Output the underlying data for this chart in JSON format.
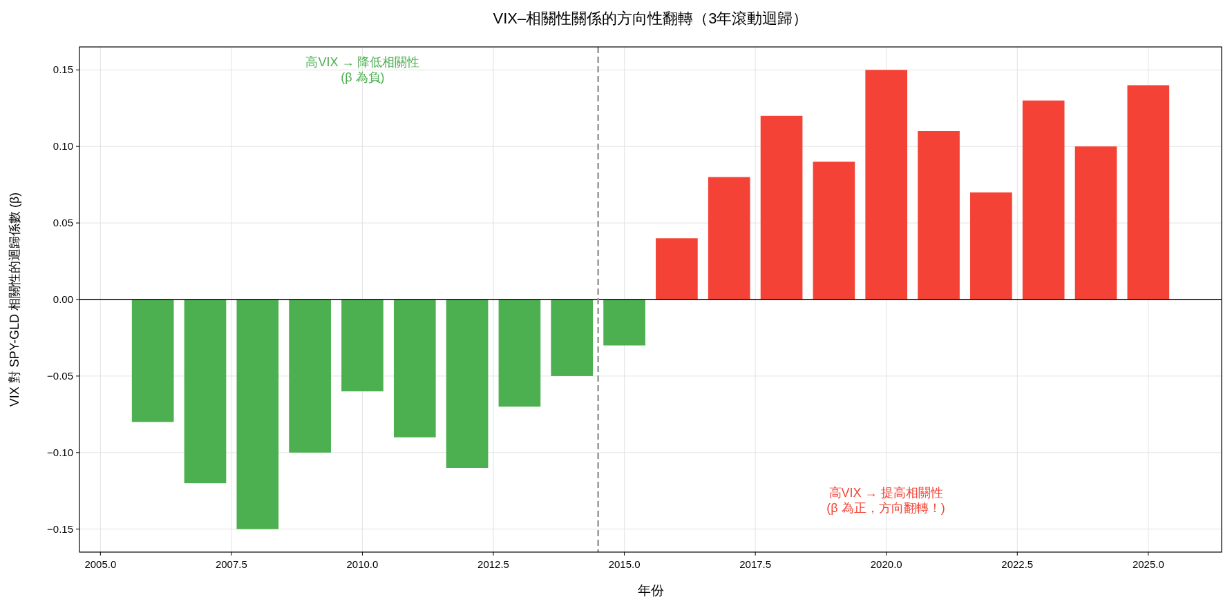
{
  "chart_data": {
    "type": "bar",
    "title": "VIX–相關性關係的方向性翻轉（3年滾動迴歸）",
    "xlabel": "年份",
    "ylabel": "VIX 對 SPY-GLD 相關性的迴歸係數 (β)",
    "x": [
      2006,
      2007,
      2008,
      2009,
      2010,
      2011,
      2012,
      2013,
      2014,
      2015,
      2016,
      2017,
      2018,
      2019,
      2020,
      2021,
      2022,
      2023,
      2024,
      2025
    ],
    "values": [
      -0.08,
      -0.12,
      -0.15,
      -0.1,
      -0.06,
      -0.09,
      -0.11,
      -0.07,
      -0.05,
      -0.03,
      0.04,
      0.08,
      0.12,
      0.09,
      0.15,
      0.11,
      0.07,
      0.13,
      0.1,
      0.14
    ],
    "colors": [
      "#4caf50",
      "#4caf50",
      "#4caf50",
      "#4caf50",
      "#4caf50",
      "#4caf50",
      "#4caf50",
      "#4caf50",
      "#4caf50",
      "#4caf50",
      "#f44336",
      "#f44336",
      "#f44336",
      "#f44336",
      "#f44336",
      "#f44336",
      "#f44336",
      "#f44336",
      "#f44336",
      "#f44336"
    ],
    "xlim": [
      2004.6,
      2026.4
    ],
    "ylim": [
      -0.165,
      0.165
    ],
    "xticks": [
      {
        "value": 2005,
        "label": "2005.0"
      },
      {
        "value": 2007.5,
        "label": "2007.5"
      },
      {
        "value": 2010,
        "label": "2010.0"
      },
      {
        "value": 2012.5,
        "label": "2012.5"
      },
      {
        "value": 2015,
        "label": "2015.0"
      },
      {
        "value": 2017.5,
        "label": "2017.5"
      },
      {
        "value": 2020,
        "label": "2020.0"
      },
      {
        "value": 2022.5,
        "label": "2022.5"
      },
      {
        "value": 2025,
        "label": "2025.0"
      }
    ],
    "yticks": [
      {
        "value": -0.15,
        "label": "−0.15"
      },
      {
        "value": -0.1,
        "label": "−0.10"
      },
      {
        "value": -0.05,
        "label": "−0.05"
      },
      {
        "value": 0,
        "label": "0.00"
      },
      {
        "value": 0.05,
        "label": "0.05"
      },
      {
        "value": 0.1,
        "label": "0.10"
      },
      {
        "value": 0.15,
        "label": "0.15"
      }
    ],
    "ref_lines": [
      {
        "axis": "y",
        "value": 0,
        "color": "#000000",
        "line_style": "solid"
      },
      {
        "axis": "x",
        "value": 2014.5,
        "color": "#9e9e9e",
        "line_style": "dashed"
      }
    ],
    "annotations": [
      "高VIX → 降低相關性\n(β 為負)",
      "高VIX → 提高相關性\n(β 為正，方向翻轉！)"
    ],
    "grid": true
  }
}
